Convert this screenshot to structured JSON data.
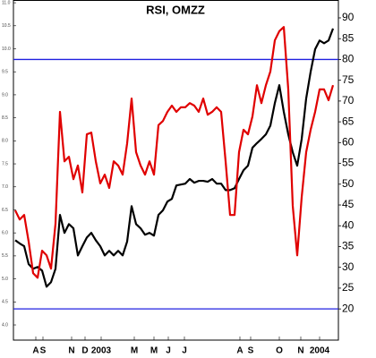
{
  "chart_data": {
    "type": "line",
    "title": "RSI, OMZZ",
    "xlim": [
      -0.4,
      72.2
    ],
    "xticks": [
      {
        "value": 4.6,
        "label": "A"
      },
      {
        "value": 6.2,
        "label": "S"
      },
      {
        "value": 12.6,
        "label": "N"
      },
      {
        "value": 15.6,
        "label": "D"
      },
      {
        "value": 19.2,
        "label": "2003"
      },
      {
        "value": 26.6,
        "label": "M"
      },
      {
        "value": 31,
        "label": "M"
      },
      {
        "value": 34.2,
        "label": "J"
      },
      {
        "value": 37.8,
        "label": "J"
      },
      {
        "value": 50.2,
        "label": "A"
      },
      {
        "value": 52.6,
        "label": "S"
      },
      {
        "value": 59,
        "label": "O"
      },
      {
        "value": 63.8,
        "label": "N"
      },
      {
        "value": 68,
        "label": "2004"
      }
    ],
    "ylim": [
      3.67,
      11.06
    ],
    "yticks": [
      {
        "value": 4,
        "label": "4.0"
      },
      4.5,
      {
        "value": 5,
        "label": "5.0"
      },
      5.5,
      {
        "value": 6,
        "label": "6.0"
      },
      6.5,
      {
        "value": 7,
        "label": "7.0"
      },
      7.5,
      {
        "value": 8,
        "label": "8.0"
      },
      8.5,
      {
        "value": 9,
        "label": "9.0"
      },
      9.5,
      {
        "value": 10,
        "label": "10.0"
      },
      10.5,
      {
        "value": 11,
        "label": "11.0"
      }
    ],
    "y2lim": [
      12.5,
      94.3
    ],
    "y2ticks": [
      20,
      25,
      30,
      35,
      40,
      45,
      50,
      55,
      60,
      65,
      70,
      75,
      80,
      85,
      90
    ],
    "hlines": [
      80,
      20
    ],
    "hline_color": "#2020e0",
    "series": [
      {
        "color": "#000000",
        "values": [
          5.84,
          5.77,
          5.71,
          5.32,
          5.22,
          5.26,
          5.18,
          4.83,
          4.93,
          5.22,
          6.39,
          6.0,
          6.19,
          6.1,
          5.51,
          5.71,
          5.9,
          6.0,
          5.84,
          5.71,
          5.51,
          5.61,
          5.51,
          5.61,
          5.51,
          5.81,
          6.58,
          6.19,
          6.1,
          5.96,
          6.0,
          5.94,
          6.39,
          6.49,
          6.68,
          6.74,
          7.03,
          7.05,
          7.07,
          7.17,
          7.09,
          7.13,
          7.13,
          7.11,
          7.17,
          7.07,
          7.07,
          6.93,
          6.93,
          6.97,
          7.17,
          7.36,
          7.46,
          7.85,
          7.95,
          8.04,
          8.14,
          8.33,
          8.82,
          9.21,
          8.63,
          8.14,
          7.75,
          7.46,
          8.04,
          8.92,
          9.5,
          9.99,
          10.18,
          10.12,
          10.18,
          10.44
        ]
      },
      {
        "color": "#e00000",
        "axis": "y2",
        "values": [
          43.7,
          41.5,
          42.6,
          36.2,
          28.6,
          27.5,
          34.0,
          32.9,
          29.7,
          40.5,
          67.4,
          55.5,
          56.6,
          51.2,
          54.5,
          48.0,
          62.0,
          62.4,
          55.5,
          50.2,
          52.3,
          49.1,
          55.5,
          54.5,
          52.3,
          59.8,
          70.6,
          57.7,
          54.5,
          52.3,
          55.5,
          52.3,
          64.2,
          65.2,
          67.4,
          68.9,
          67.4,
          68.5,
          68.5,
          69.5,
          68.9,
          67.4,
          70.6,
          66.7,
          67.4,
          68.5,
          67.4,
          55.5,
          42.6,
          42.6,
          57.7,
          63.1,
          62.0,
          66.3,
          73.8,
          69.5,
          73.8,
          77.1,
          84.6,
          86.8,
          87.8,
          72.8,
          44.8,
          32.9,
          46.9,
          57.7,
          63.1,
          67.4,
          72.8,
          72.8,
          70.2,
          73.8
        ]
      }
    ]
  }
}
